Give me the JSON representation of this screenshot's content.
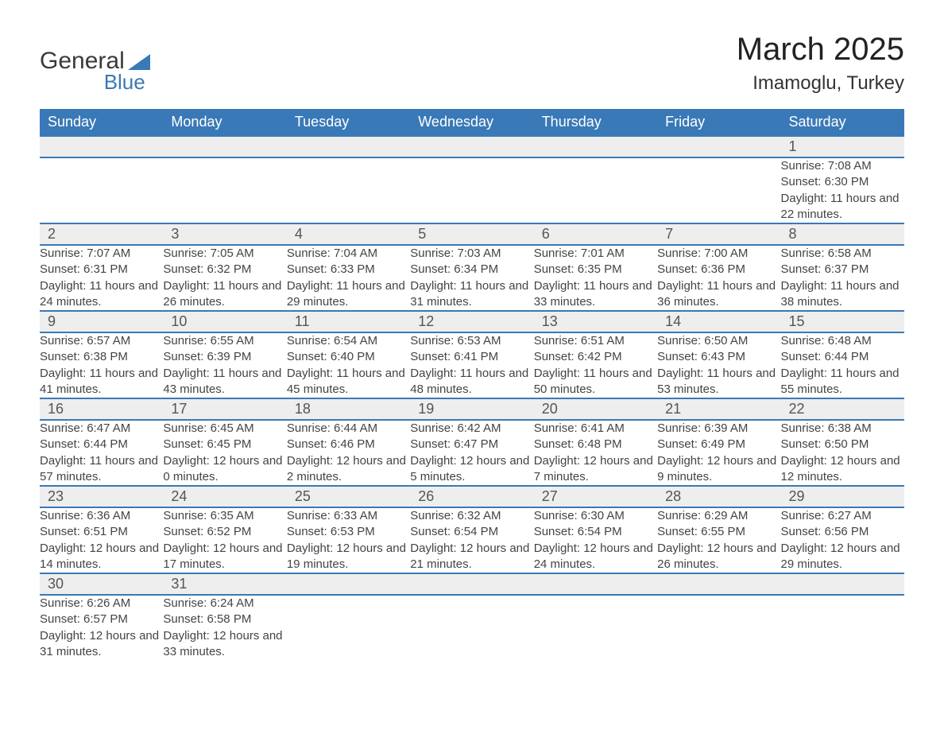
{
  "logo": {
    "text1": "General",
    "text2": "Blue",
    "triangle_color": "#3a79b7"
  },
  "header": {
    "month_title": "March 2025",
    "location": "Imamoglu, Turkey"
  },
  "calendar": {
    "header_bg": "#3a79b7",
    "header_fg": "#ffffff",
    "daynum_bg": "#eeeeee",
    "row_border": "#3a79b7",
    "day_labels": [
      "Sunday",
      "Monday",
      "Tuesday",
      "Wednesday",
      "Thursday",
      "Friday",
      "Saturday"
    ],
    "weeks": [
      [
        null,
        null,
        null,
        null,
        null,
        null,
        {
          "n": "1",
          "sunrise": "Sunrise: 7:08 AM",
          "sunset": "Sunset: 6:30 PM",
          "daylight": "Daylight: 11 hours and 22 minutes."
        }
      ],
      [
        {
          "n": "2",
          "sunrise": "Sunrise: 7:07 AM",
          "sunset": "Sunset: 6:31 PM",
          "daylight": "Daylight: 11 hours and 24 minutes."
        },
        {
          "n": "3",
          "sunrise": "Sunrise: 7:05 AM",
          "sunset": "Sunset: 6:32 PM",
          "daylight": "Daylight: 11 hours and 26 minutes."
        },
        {
          "n": "4",
          "sunrise": "Sunrise: 7:04 AM",
          "sunset": "Sunset: 6:33 PM",
          "daylight": "Daylight: 11 hours and 29 minutes."
        },
        {
          "n": "5",
          "sunrise": "Sunrise: 7:03 AM",
          "sunset": "Sunset: 6:34 PM",
          "daylight": "Daylight: 11 hours and 31 minutes."
        },
        {
          "n": "6",
          "sunrise": "Sunrise: 7:01 AM",
          "sunset": "Sunset: 6:35 PM",
          "daylight": "Daylight: 11 hours and 33 minutes."
        },
        {
          "n": "7",
          "sunrise": "Sunrise: 7:00 AM",
          "sunset": "Sunset: 6:36 PM",
          "daylight": "Daylight: 11 hours and 36 minutes."
        },
        {
          "n": "8",
          "sunrise": "Sunrise: 6:58 AM",
          "sunset": "Sunset: 6:37 PM",
          "daylight": "Daylight: 11 hours and 38 minutes."
        }
      ],
      [
        {
          "n": "9",
          "sunrise": "Sunrise: 6:57 AM",
          "sunset": "Sunset: 6:38 PM",
          "daylight": "Daylight: 11 hours and 41 minutes."
        },
        {
          "n": "10",
          "sunrise": "Sunrise: 6:55 AM",
          "sunset": "Sunset: 6:39 PM",
          "daylight": "Daylight: 11 hours and 43 minutes."
        },
        {
          "n": "11",
          "sunrise": "Sunrise: 6:54 AM",
          "sunset": "Sunset: 6:40 PM",
          "daylight": "Daylight: 11 hours and 45 minutes."
        },
        {
          "n": "12",
          "sunrise": "Sunrise: 6:53 AM",
          "sunset": "Sunset: 6:41 PM",
          "daylight": "Daylight: 11 hours and 48 minutes."
        },
        {
          "n": "13",
          "sunrise": "Sunrise: 6:51 AM",
          "sunset": "Sunset: 6:42 PM",
          "daylight": "Daylight: 11 hours and 50 minutes."
        },
        {
          "n": "14",
          "sunrise": "Sunrise: 6:50 AM",
          "sunset": "Sunset: 6:43 PM",
          "daylight": "Daylight: 11 hours and 53 minutes."
        },
        {
          "n": "15",
          "sunrise": "Sunrise: 6:48 AM",
          "sunset": "Sunset: 6:44 PM",
          "daylight": "Daylight: 11 hours and 55 minutes."
        }
      ],
      [
        {
          "n": "16",
          "sunrise": "Sunrise: 6:47 AM",
          "sunset": "Sunset: 6:44 PM",
          "daylight": "Daylight: 11 hours and 57 minutes."
        },
        {
          "n": "17",
          "sunrise": "Sunrise: 6:45 AM",
          "sunset": "Sunset: 6:45 PM",
          "daylight": "Daylight: 12 hours and 0 minutes."
        },
        {
          "n": "18",
          "sunrise": "Sunrise: 6:44 AM",
          "sunset": "Sunset: 6:46 PM",
          "daylight": "Daylight: 12 hours and 2 minutes."
        },
        {
          "n": "19",
          "sunrise": "Sunrise: 6:42 AM",
          "sunset": "Sunset: 6:47 PM",
          "daylight": "Daylight: 12 hours and 5 minutes."
        },
        {
          "n": "20",
          "sunrise": "Sunrise: 6:41 AM",
          "sunset": "Sunset: 6:48 PM",
          "daylight": "Daylight: 12 hours and 7 minutes."
        },
        {
          "n": "21",
          "sunrise": "Sunrise: 6:39 AM",
          "sunset": "Sunset: 6:49 PM",
          "daylight": "Daylight: 12 hours and 9 minutes."
        },
        {
          "n": "22",
          "sunrise": "Sunrise: 6:38 AM",
          "sunset": "Sunset: 6:50 PM",
          "daylight": "Daylight: 12 hours and 12 minutes."
        }
      ],
      [
        {
          "n": "23",
          "sunrise": "Sunrise: 6:36 AM",
          "sunset": "Sunset: 6:51 PM",
          "daylight": "Daylight: 12 hours and 14 minutes."
        },
        {
          "n": "24",
          "sunrise": "Sunrise: 6:35 AM",
          "sunset": "Sunset: 6:52 PM",
          "daylight": "Daylight: 12 hours and 17 minutes."
        },
        {
          "n": "25",
          "sunrise": "Sunrise: 6:33 AM",
          "sunset": "Sunset: 6:53 PM",
          "daylight": "Daylight: 12 hours and 19 minutes."
        },
        {
          "n": "26",
          "sunrise": "Sunrise: 6:32 AM",
          "sunset": "Sunset: 6:54 PM",
          "daylight": "Daylight: 12 hours and 21 minutes."
        },
        {
          "n": "27",
          "sunrise": "Sunrise: 6:30 AM",
          "sunset": "Sunset: 6:54 PM",
          "daylight": "Daylight: 12 hours and 24 minutes."
        },
        {
          "n": "28",
          "sunrise": "Sunrise: 6:29 AM",
          "sunset": "Sunset: 6:55 PM",
          "daylight": "Daylight: 12 hours and 26 minutes."
        },
        {
          "n": "29",
          "sunrise": "Sunrise: 6:27 AM",
          "sunset": "Sunset: 6:56 PM",
          "daylight": "Daylight: 12 hours and 29 minutes."
        }
      ],
      [
        {
          "n": "30",
          "sunrise": "Sunrise: 6:26 AM",
          "sunset": "Sunset: 6:57 PM",
          "daylight": "Daylight: 12 hours and 31 minutes."
        },
        {
          "n": "31",
          "sunrise": "Sunrise: 6:24 AM",
          "sunset": "Sunset: 6:58 PM",
          "daylight": "Daylight: 12 hours and 33 minutes."
        },
        null,
        null,
        null,
        null,
        null
      ]
    ]
  }
}
